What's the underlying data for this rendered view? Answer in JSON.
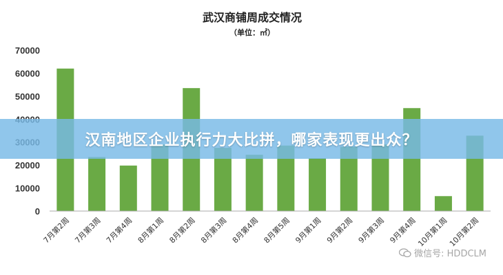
{
  "banner": {
    "text": "汉南地区企业执行力大比拼，哪家表现更出众？"
  },
  "watermark": {
    "text": "微信号: HDDCLM",
    "icon": "wechat-icon"
  },
  "chart_data": {
    "type": "bar",
    "title": "武汉商铺周成交情况",
    "subtitle": "（单位：㎡）",
    "categories": [
      "7月第2周",
      "7月第3周",
      "7月第4周",
      "8月第1周",
      "8月第2周",
      "8月第3周",
      "8月第4周",
      "8月第5周",
      "9月第1周",
      "9月第2周",
      "9月第3周",
      "9月第4周",
      "10月第1周",
      "10月第2周"
    ],
    "values": [
      62000,
      23500,
      19800,
      29000,
      53500,
      27500,
      24500,
      28500,
      23000,
      28000,
      29000,
      44800,
      6500,
      32800
    ],
    "ylim": [
      0,
      70000
    ],
    "yticks": [
      0,
      10000,
      20000,
      30000,
      40000,
      50000,
      60000,
      70000
    ],
    "bar_color": "#6aaa45",
    "grid": false,
    "legend": "none"
  }
}
